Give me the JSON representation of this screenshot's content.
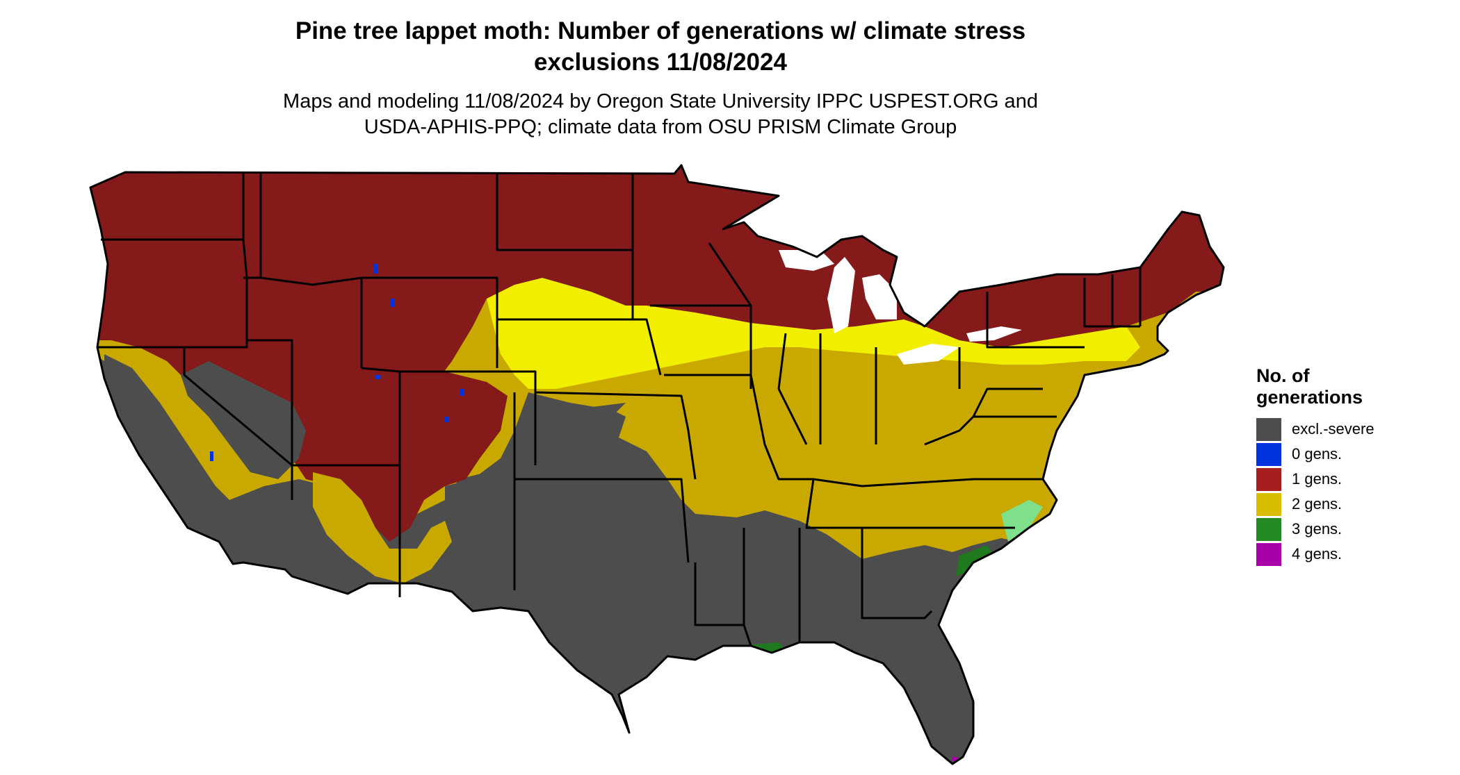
{
  "title_line1": "Pine tree lappet moth: Number of generations w/ climate stress",
  "title_line2": "exclusions 11/08/2024",
  "subtitle_line1": "Maps and modeling 11/08/2024 by Oregon State University IPPC USPEST.ORG and",
  "subtitle_line2": "USDA-APHIS-PPQ; climate data from OSU PRISM Climate Group",
  "legend": {
    "title_line1": "No. of",
    "title_line2": "generations",
    "items": [
      {
        "label": "excl.-severe",
        "color": "#4d4d4d"
      },
      {
        "label": "0 gens.",
        "color": "#0033dd"
      },
      {
        "label": "1 gens.",
        "color": "#a61e1e"
      },
      {
        "label": "2 gens.",
        "color": "#d9bd00"
      },
      {
        "label": "3 gens.",
        "color": "#238a23"
      },
      {
        "label": "4 gens.",
        "color": "#a800a8"
      }
    ]
  },
  "map_colors": {
    "excluded": "#4d4d4d",
    "zero_gens": "#0033dd",
    "one_gen": "#841a1a",
    "two_gens": "#c9a900",
    "two_gens_bright": "#f2ee00",
    "three_gens": "#1f7a1f",
    "three_gens_light": "#7ee08a",
    "four_gens": "#a800a8",
    "borders": "#000000"
  }
}
